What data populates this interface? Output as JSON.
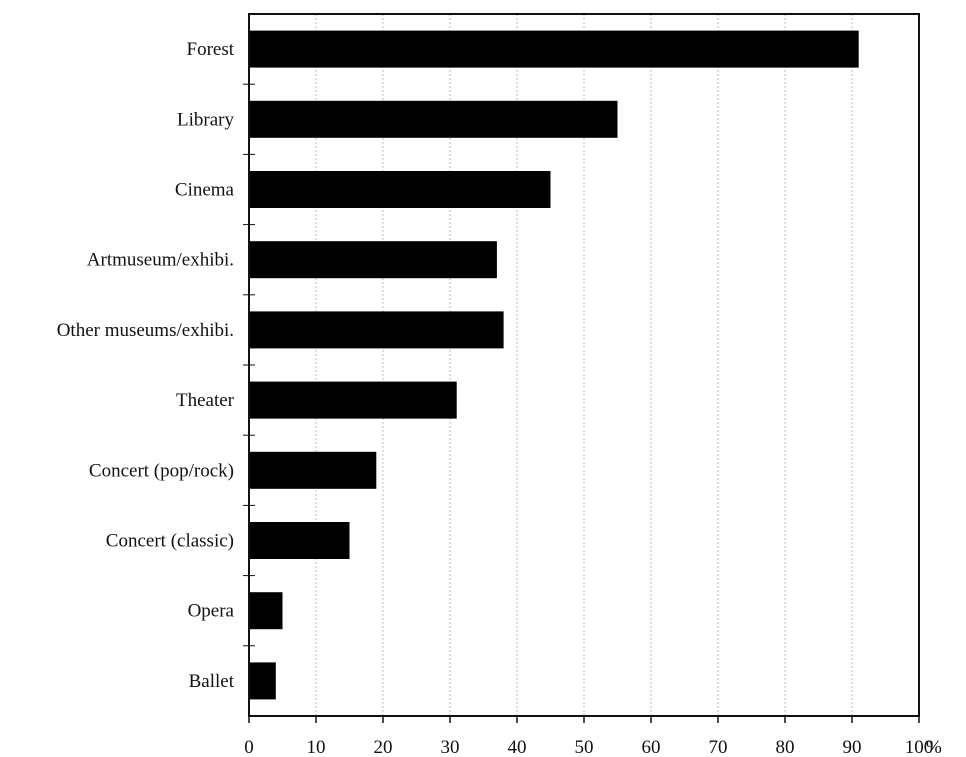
{
  "chart_data": {
    "type": "bar",
    "orientation": "horizontal",
    "title": "",
    "xlabel": "",
    "ylabel": "",
    "unit": "%",
    "categories": [
      "Forest",
      "Library",
      "Cinema",
      "Artmuseum/exhibi.",
      "Other museums/exhibi.",
      "Theater",
      "Concert (pop/rock)",
      "Concert (classic)",
      "Opera",
      "Ballet"
    ],
    "values": [
      91,
      55,
      45,
      37,
      38,
      31,
      19,
      15,
      5,
      4
    ],
    "xlim": [
      0,
      100
    ],
    "xticks": [
      "0",
      "10",
      "20",
      "30",
      "40",
      "50",
      "60",
      "70",
      "80",
      "90",
      "100"
    ],
    "grid": true,
    "bar_color": "#000000",
    "grid_color": "#bbbbbb"
  }
}
